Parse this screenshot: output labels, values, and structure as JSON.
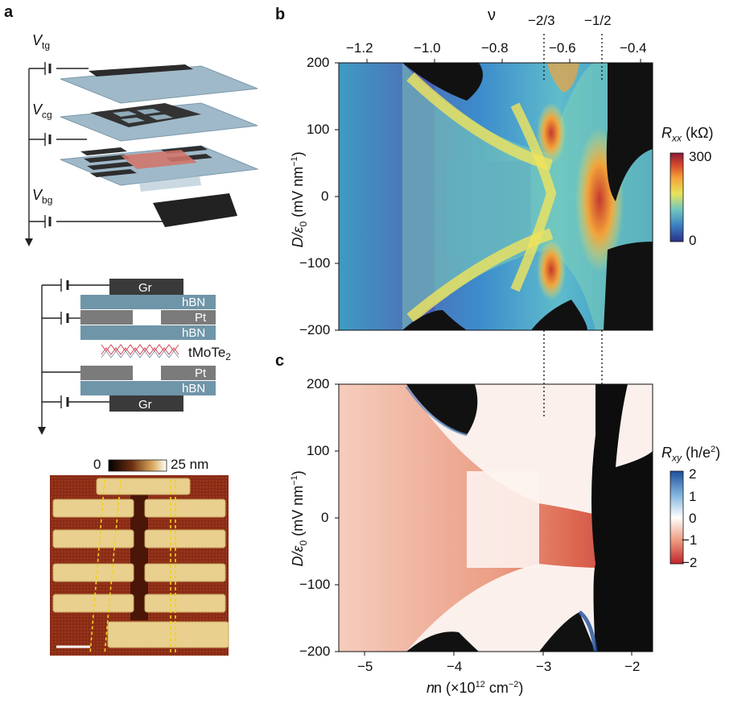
{
  "panels": {
    "a": "a",
    "b": "b",
    "c": "c"
  },
  "panel_a": {
    "voltages": {
      "tg": {
        "v": "V",
        "sub": "tg"
      },
      "cg": {
        "v": "V",
        "sub": "cg"
      },
      "bg": {
        "v": "V",
        "sub": "bg"
      }
    },
    "stack_layers": {
      "top_gr": "Gr",
      "hbn_top": "hBN",
      "pt_top": "Pt",
      "hbn_mid": "hBN",
      "sample": "tMoTe",
      "sample_sub": "2",
      "pt_bottom": "Pt",
      "hbn_bottom": "hBN",
      "bottom_gr": "Gr"
    },
    "afm_scale": {
      "min": "0",
      "max": "25 nm"
    }
  },
  "top_axis": {
    "symbol": "ν",
    "ticks": [
      "−1.2",
      "−1.0",
      "−0.8",
      "−0.6",
      "−0.4"
    ],
    "fillings": [
      "−2/3",
      "−1/2"
    ]
  },
  "y_axis": {
    "label_main": "D/ε",
    "label_sub": "0",
    "label_unit": " (mV nm",
    "label_exp": "−1",
    "label_close": ")",
    "ticks": [
      "200",
      "100",
      "0",
      "−100",
      "−200"
    ]
  },
  "x_axis": {
    "label": "n (×10",
    "label_exp1": "12",
    "label_mid": " cm",
    "label_exp2": "−2",
    "label_close": ")",
    "ticks": [
      "−5",
      "−4",
      "−3",
      "−2"
    ]
  },
  "colorbar_b": {
    "title": "R",
    "title_sub": "xx",
    "unit": " (kΩ)",
    "ticks": [
      "300",
      "0"
    ],
    "stops": [
      "#2c2f8a",
      "#3a7fc1",
      "#6fc6c0",
      "#e8e45a",
      "#f4a23a",
      "#d84a2c",
      "#8c1a3a"
    ]
  },
  "colorbar_c": {
    "title": "R",
    "title_sub": "xy",
    "unit_open": " (h/e",
    "unit_exp": "2",
    "unit_close": ")",
    "ticks": [
      "2",
      "1",
      "0",
      "−1",
      "−2"
    ],
    "stops": [
      "#1e4f9c",
      "#7fb2dc",
      "#ffffff",
      "#ec9a7e",
      "#c0242a"
    ]
  }
}
